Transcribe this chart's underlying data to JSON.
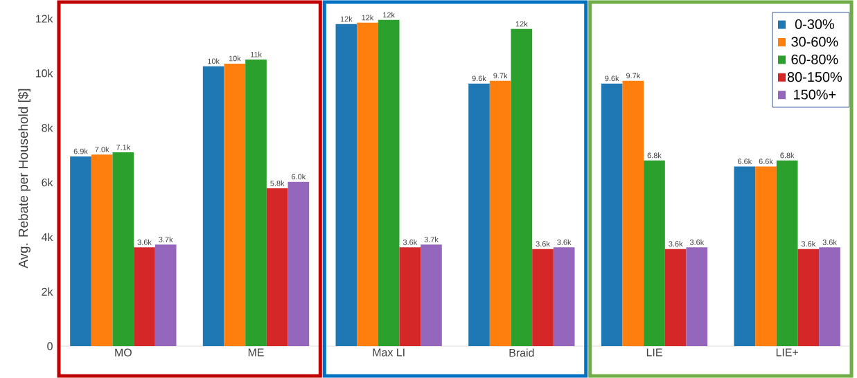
{
  "chart_data": {
    "type": "bar",
    "ylabel": "Avg. Rebate per Household [$]",
    "categories": [
      "MO",
      "ME",
      "Max LI",
      "Braid",
      "LIE",
      "LIE+"
    ],
    "ylim": [
      0,
      12300
    ],
    "yticks": [
      0,
      {
        "value": 2000,
        "label": "2k"
      },
      {
        "value": 4000,
        "label": "4k"
      },
      {
        "value": 6000,
        "label": "6k"
      },
      {
        "value": 8000,
        "label": "8k"
      },
      {
        "value": 10000,
        "label": "10k"
      },
      {
        "value": 12000,
        "label": "12k"
      }
    ],
    "legend": "top right",
    "series": [
      {
        "name": "0-30%",
        "color": "#1f77b4",
        "values": [
          6950,
          10250,
          11800,
          9620,
          9620,
          6580
        ],
        "value_labels": [
          "6.9k",
          "10k",
          "12k",
          "9.6k",
          "9.6k",
          "6.6k"
        ]
      },
      {
        "name": "30-60%",
        "color": "#ff7f0e",
        "values": [
          7020,
          10350,
          11850,
          9720,
          9720,
          6580
        ],
        "value_labels": [
          "7.0k",
          "10k",
          "12k",
          "9.7k",
          "9.7k",
          "6.6k"
        ]
      },
      {
        "name": "60-80%",
        "color": "#2ca02c",
        "values": [
          7100,
          10500,
          11950,
          11620,
          6800,
          6800
        ],
        "value_labels": [
          "7.1k",
          "11k",
          "12k",
          "12k",
          "6.8k",
          "6.8k"
        ]
      },
      {
        "name": "80-150%",
        "color": "#d62728",
        "values": [
          3620,
          5780,
          3620,
          3560,
          3560,
          3560
        ],
        "value_labels": [
          "3.6k",
          "5.8k",
          "3.6k",
          "3.6k",
          "3.6k",
          "3.6k"
        ]
      },
      {
        "name": "150%+",
        "color": "#9467bd",
        "values": [
          3720,
          6020,
          3720,
          3620,
          3620,
          3620
        ],
        "value_labels": [
          "3.7k",
          "6.0k",
          "3.7k",
          "3.6k",
          "3.6k",
          "3.6k"
        ]
      }
    ]
  }
}
